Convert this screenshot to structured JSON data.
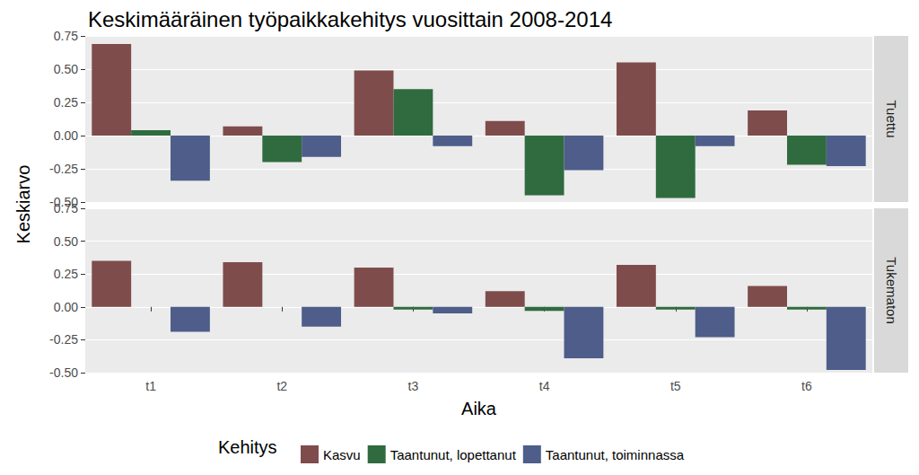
{
  "chart_data": {
    "type": "bar",
    "title": "Keskimääräinen työpaikkakehitys vuosittain 2008-2014",
    "x_label": "Aika",
    "y_label": "Keskiarvo",
    "legend_title": "Kehitys",
    "legend": "bottom",
    "grid": true,
    "categories": [
      "t1",
      "t2",
      "t3",
      "t4",
      "t5",
      "t6"
    ],
    "series": [
      {
        "name": "Kasvu",
        "color": "#7F4C4C"
      },
      {
        "name": "Taantunut, lopettanut",
        "color": "#2F6B3F"
      },
      {
        "name": "Taantunut, toiminnassa",
        "color": "#4E5D89"
      }
    ],
    "facets": [
      {
        "name": "Tuettu",
        "values": [
          [
            0.69,
            0.07,
            0.49,
            0.11,
            0.55,
            0.19
          ],
          [
            0.04,
            -0.2,
            0.35,
            -0.45,
            -0.47,
            -0.22
          ],
          [
            -0.34,
            -0.16,
            -0.08,
            -0.26,
            -0.08,
            -0.23
          ]
        ]
      },
      {
        "name": "Tukematon",
        "values": [
          [
            0.35,
            0.34,
            0.3,
            0.12,
            0.32,
            0.16
          ],
          [
            0,
            0,
            -0.02,
            -0.03,
            -0.02,
            -0.02
          ],
          [
            -0.19,
            -0.15,
            -0.05,
            -0.39,
            -0.23,
            -0.48
          ]
        ]
      }
    ],
    "ylim": [
      -0.5,
      0.75
    ],
    "yticks": [
      {
        "value": -0.5,
        "label": "-0.50"
      },
      {
        "value": -0.25,
        "label": "-0.25"
      },
      {
        "value": 0,
        "label": "0.00"
      },
      {
        "value": 0.25,
        "label": "0.25"
      },
      {
        "value": 0.5,
        "label": "0.50"
      },
      {
        "value": 0.75,
        "label": "0.75"
      }
    ]
  }
}
